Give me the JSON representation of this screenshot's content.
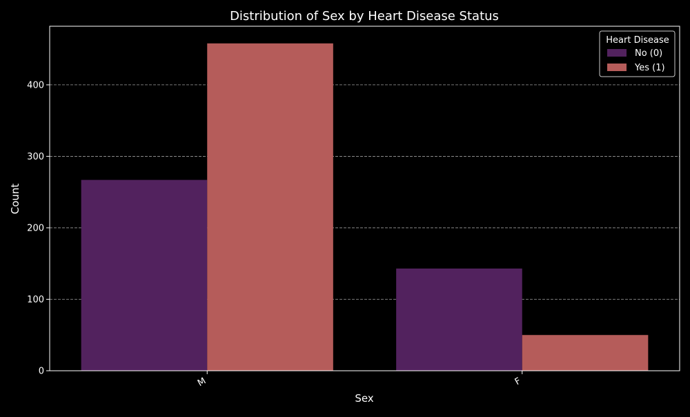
{
  "chart_data": {
    "type": "bar",
    "title": "Distribution of Sex by Heart Disease Status",
    "xlabel": "Sex",
    "ylabel": "Count",
    "categories": [
      "M",
      "F"
    ],
    "series": [
      {
        "name": "No (0)",
        "values": [
          267,
          143
        ],
        "color": "#52225e"
      },
      {
        "name": "Yes (1)",
        "values": [
          458,
          50
        ],
        "color": "#b55c5a"
      }
    ],
    "ylim": [
      0,
      482
    ],
    "yticks": [
      0,
      100,
      200,
      300,
      400
    ],
    "grid": true,
    "legend": {
      "title": "Heart Disease",
      "placement": "top-right"
    }
  },
  "colors": {
    "background": "#000000",
    "text": "#ffffff",
    "grid": "#b0b0b0"
  }
}
